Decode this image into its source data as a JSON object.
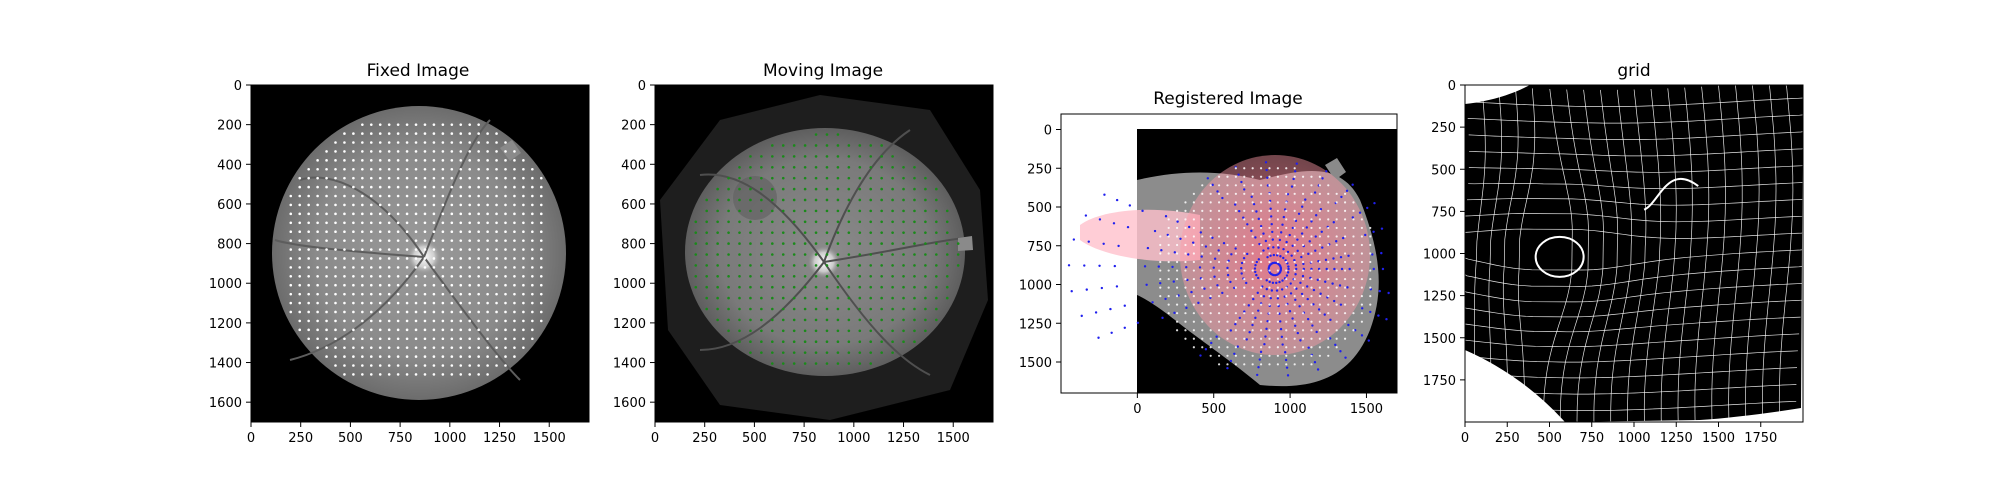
{
  "chart_data": [
    {
      "type": "image",
      "title": "Fixed Image",
      "xlim": [
        0,
        1700
      ],
      "ylim": [
        1700,
        0
      ],
      "xticks": [
        0,
        250,
        500,
        750,
        1000,
        1250,
        1500
      ],
      "yticks": [
        0,
        200,
        400,
        600,
        800,
        1000,
        1200,
        1400,
        1600
      ],
      "image": {
        "kind": "fundus",
        "center": [
          850,
          850
        ],
        "radius": 740,
        "optic_disc": [
          870,
          870
        ]
      },
      "points": {
        "color": "#ffffff",
        "x_range": [
          200,
          1500
        ],
        "y_range": [
          200,
          1500
        ],
        "spacing": 45
      }
    },
    {
      "type": "image",
      "title": "Moving Image",
      "xlim": [
        0,
        1700
      ],
      "ylim": [
        1700,
        0
      ],
      "xticks": [
        0,
        250,
        500,
        750,
        1000,
        1250,
        1500
      ],
      "yticks": [
        0,
        200,
        400,
        600,
        800,
        1000,
        1200,
        1400,
        1600
      ],
      "image": {
        "kind": "fundus",
        "center": [
          850,
          850
        ],
        "radius": 700,
        "optic_disc": [
          850,
          900
        ]
      },
      "points": {
        "color": "#1a8a1a",
        "x_range": [
          150,
          1550
        ],
        "y_range": [
          250,
          1450
        ],
        "spacing": 55
      }
    },
    {
      "type": "image",
      "title": "Registered Image",
      "xlim": [
        -500,
        1700
      ],
      "ylim": [
        1700,
        -100
      ],
      "xticks": [
        0,
        500,
        1000,
        1500
      ],
      "yticks": [
        0,
        250,
        500,
        750,
        1000,
        1250,
        1500
      ],
      "image": {
        "kind": "warped",
        "extent": [
          0,
          1700,
          0,
          1700
        ]
      },
      "overlays": [
        {
          "name": "moving-points",
          "color": "#2020ee"
        },
        {
          "name": "fixed-points",
          "color": "#ffffff"
        },
        {
          "name": "warped-region",
          "color": "#ff5070"
        }
      ]
    },
    {
      "type": "grid",
      "title": "grid",
      "xlim": [
        0,
        2000
      ],
      "ylim": [
        2000,
        0
      ],
      "xticks": [
        0,
        250,
        500,
        750,
        1000,
        1250,
        1500,
        1750
      ],
      "yticks": [
        0,
        250,
        500,
        750,
        1000,
        1250,
        1500,
        1750
      ],
      "grid": {
        "line_color": "#ffffff",
        "background": "#000000",
        "spacing": 100
      }
    }
  ]
}
